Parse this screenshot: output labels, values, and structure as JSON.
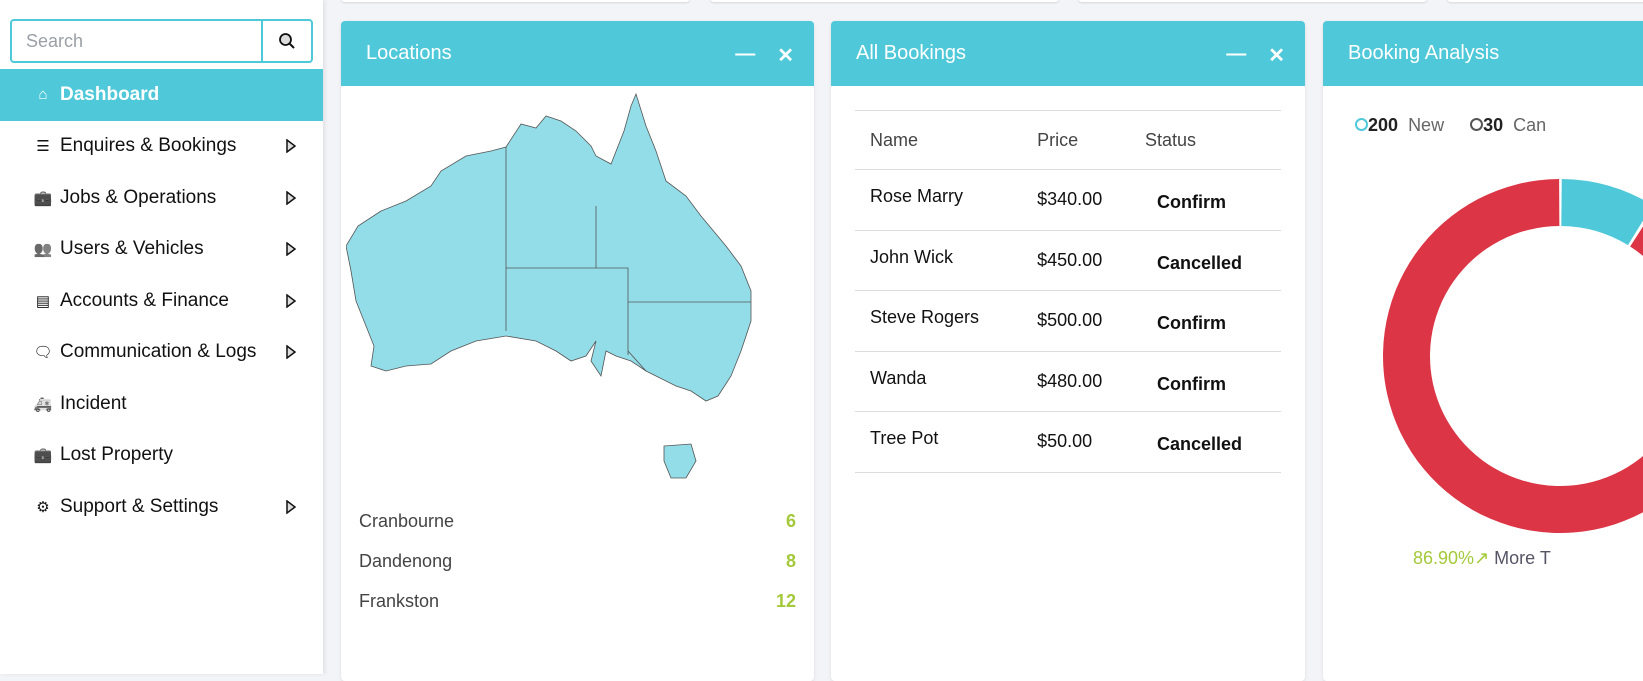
{
  "sidebar": {
    "search_placeholder": "Search",
    "items": [
      {
        "label": "Dashboard",
        "icon": "home-icon",
        "active": true
      },
      {
        "label": "Enquires & Bookings",
        "icon": "layers-icon",
        "submenu": true
      },
      {
        "label": "Jobs & Operations",
        "icon": "briefcase-icon",
        "submenu": true
      },
      {
        "label": "Users & Vehicles",
        "icon": "users-icon",
        "submenu": true
      },
      {
        "label": "Accounts & Finance",
        "icon": "card-icon",
        "submenu": true
      },
      {
        "label": "Communication & Logs",
        "icon": "chat-icon",
        "submenu": true
      },
      {
        "label": "Incident",
        "icon": "ambulance-icon"
      },
      {
        "label": "Lost Property",
        "icon": "briefcase-icon"
      },
      {
        "label": "Support & Settings",
        "icon": "gear-icon",
        "submenu": true
      }
    ]
  },
  "locations": {
    "title": "Locations",
    "rows": [
      {
        "name": "Cranbourne",
        "count": "6"
      },
      {
        "name": "Dandenong",
        "count": "8"
      },
      {
        "name": "Frankston",
        "count": "12"
      }
    ]
  },
  "bookings": {
    "title": "All Bookings",
    "columns": [
      "Name",
      "Price",
      "Status"
    ],
    "rows": [
      {
        "name": "Rose Marry",
        "price": "$340.00",
        "status": "Confirm"
      },
      {
        "name": "John Wick",
        "price": "$450.00",
        "status": "Cancelled"
      },
      {
        "name": "Steve Rogers",
        "price": "$500.00",
        "status": "Confirm"
      },
      {
        "name": "Wanda",
        "price": "$480.00",
        "status": "Confirm"
      },
      {
        "name": "Tree Pot",
        "price": "$50.00",
        "status": "Cancelled"
      }
    ]
  },
  "analysis": {
    "title": "Booking Analysis",
    "legend": [
      {
        "value": "200",
        "label": "New",
        "color": "#4fc8d9"
      },
      {
        "value": "30",
        "label": "Can",
        "color": "#555555"
      }
    ],
    "percent": "86.90%",
    "more": "More T",
    "colors": {
      "major": "#dc3545",
      "minor": "#4fc8d9"
    }
  },
  "colors": {
    "accent": "#4fc8d9",
    "count": "#a4c93a"
  }
}
